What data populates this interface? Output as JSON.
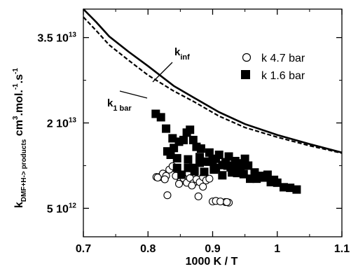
{
  "chart_data": {
    "type": "scatter",
    "title": "",
    "xlabel": "1000 K / T",
    "ylabel": {
      "main": "k",
      "subscript": "DMF+H-> products",
      "units_prefix": " cm",
      "units_exp1": "3",
      "units_mid": ".mol.",
      "units_exp2": "-1",
      "units_mid2": ".s",
      "units_exp3": "-1"
    },
    "xlim": [
      0.7,
      1.1
    ],
    "ylim": [
      0,
      40000000000000
    ],
    "x_ticks": [
      {
        "value": 0.7,
        "label": "0.7"
      },
      {
        "value": 0.8,
        "label": "0.8"
      },
      {
        "value": 0.9,
        "label": "0.9"
      },
      {
        "value": 1.0,
        "label": "1"
      },
      {
        "value": 1.1,
        "label": "1.1"
      }
    ],
    "y_ticks": [
      {
        "value": 5000000000000,
        "mantissa": "5 10",
        "exp": "12"
      },
      {
        "value": 20000000000000,
        "mantissa": "2 10",
        "exp": "13"
      },
      {
        "value": 35000000000000,
        "mantissa": "3.5 10",
        "exp": "13"
      }
    ],
    "legend": {
      "position": "top-right",
      "entries": [
        {
          "label": "k 4.7 bar",
          "marker": "open-circle"
        },
        {
          "label": "k 1.6 bar",
          "marker": "filled-square"
        }
      ]
    },
    "annotations": [
      {
        "main": "k",
        "sub": "inf",
        "points_to": "k_inf"
      },
      {
        "main": "k",
        "sub": "1 bar",
        "points_to": "k_1bar"
      }
    ],
    "series": [
      {
        "name": "k 4.7 bar",
        "marker": "open-circle",
        "x": [
          0.813,
          0.818,
          0.823,
          0.828,
          0.833,
          0.838,
          0.815,
          0.826,
          0.843,
          0.85,
          0.855,
          0.86,
          0.865,
          0.87,
          0.875,
          0.88,
          0.885,
          0.89,
          0.895,
          0.848,
          0.868,
          0.885,
          0.92,
          0.925,
          0.83,
          0.878,
          0.9,
          0.905,
          0.912,
          0.922
        ],
        "y": [
          10500000000000,
          10500000000000,
          11100000000000,
          10700000000000,
          11800000000000,
          12400000000000,
          10400000000000,
          10100000000000,
          10700000000000,
          9700000000000,
          10300000000000,
          9500000000000,
          10300000000000,
          9400000000000,
          10100000000000,
          9600000000000,
          10500000000000,
          9900000000000,
          10200000000000,
          9300000000000,
          9000000000000,
          8800000000000,
          6100000000000,
          6000000000000,
          7300000000000,
          7100000000000,
          6200000000000,
          6300000000000,
          6200000000000,
          6100000000000
        ]
      },
      {
        "name": "k 1.6 bar",
        "marker": "filled-square",
        "x": [
          0.812,
          0.82,
          0.828,
          0.838,
          0.848,
          0.855,
          0.86,
          0.865,
          0.87,
          0.875,
          0.882,
          0.84,
          0.845,
          0.83,
          0.835,
          0.88,
          0.89,
          0.895,
          0.9,
          0.905,
          0.91,
          0.915,
          0.92,
          0.925,
          0.93,
          0.935,
          0.94,
          0.945,
          0.95,
          0.955,
          0.965,
          0.975,
          0.985,
          0.99,
          1.0,
          1.01,
          1.02,
          1.03,
          0.845,
          0.852,
          0.862,
          0.872,
          0.887,
          0.902,
          0.915,
          0.928,
          0.938,
          0.948,
          0.958,
          0.968,
          0.978,
          0.995,
          0.862,
          0.87,
          0.88,
          0.895,
          0.905,
          0.923,
          0.933,
          0.943
        ],
        "y": [
          21600000000000,
          21000000000000,
          19000000000000,
          17300000000000,
          16700000000000,
          17000000000000,
          18300000000000,
          18800000000000,
          17000000000000,
          15800000000000,
          15500000000000,
          15600000000000,
          13800000000000,
          15000000000000,
          14400000000000,
          14000000000000,
          13200000000000,
          14800000000000,
          13400000000000,
          13700000000000,
          14400000000000,
          12600000000000,
          13100000000000,
          14100000000000,
          11300000000000,
          13300000000000,
          12400000000000,
          12900000000000,
          13700000000000,
          12500000000000,
          11300000000000,
          10700000000000,
          10900000000000,
          9600000000000,
          9500000000000,
          8700000000000,
          8600000000000,
          8300000000000,
          12100000000000,
          10900000000000,
          12100000000000,
          11500000000000,
          11400000000000,
          11800000000000,
          10800000000000,
          12200000000000,
          11200000000000,
          11000000000000,
          10200000000000,
          10200000000000,
          10400000000000,
          10000000000000,
          13600000000000,
          12100000000000,
          13000000000000,
          13200000000000,
          12100000000000,
          12500000000000,
          12300000000000,
          11500000000000
        ]
      },
      {
        "name": "k_inf",
        "marker": "solid-line",
        "x": [
          0.7,
          0.72,
          0.74,
          0.77,
          0.8,
          0.84,
          0.87,
          0.91,
          0.95,
          1.0,
          1.05,
          1.1
        ],
        "y": [
          40000000000000,
          37700000000000,
          35200000000000,
          32500000000000,
          30000000000000,
          26500000000000,
          24500000000000,
          21900000000000,
          19800000000000,
          17900000000000,
          16300000000000,
          14800000000000
        ]
      },
      {
        "name": "k_1bar",
        "marker": "dashed-line",
        "x": [
          0.7,
          0.72,
          0.74,
          0.77,
          0.8,
          0.84,
          0.87,
          0.91,
          0.95,
          1.0,
          1.05,
          1.1
        ],
        "y": [
          38600000000000,
          36200000000000,
          33700000000000,
          31000000000000,
          28400000000000,
          25600000000000,
          23800000000000,
          21200000000000,
          19200000000000,
          17500000000000,
          16000000000000,
          14700000000000
        ]
      }
    ],
    "grid": false
  }
}
